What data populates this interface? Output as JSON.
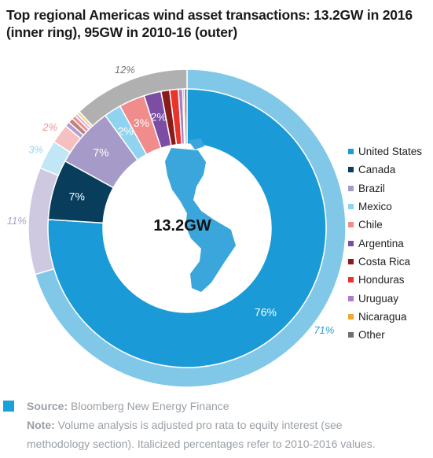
{
  "title_line1": "Top regional Americas wind asset transactions: 13.2GW in 2016",
  "title_line2": "(inner ring), 95GW in 2010-16 (outer)",
  "center_label": "13.2GW",
  "source_label": "Source:",
  "source_text": "Bloomberg New Energy Finance",
  "note_label": "Note:",
  "note_text_1": "Volume analysis is adjusted pro rata to equity interest (see",
  "note_text_2": "methodology section). Italicized percentages refer to 2010-2016 values.",
  "chart_data": {
    "type": "pie",
    "variant": "nested-donut",
    "legend_placement": "right",
    "categories": [
      "United States",
      "Canada",
      "Brazil",
      "Mexico",
      "Chile",
      "Argentina",
      "Costa Rica",
      "Honduras",
      "Uruguay",
      "Nicaragua",
      "Other"
    ],
    "colors": [
      "#1a9ad6",
      "#083d5c",
      "#a69bc8",
      "#8fd3f0",
      "#f08c8c",
      "#7b4ea3",
      "#8b1a1a",
      "#e8342a",
      "#b07cc6",
      "#f0a830",
      "#707070"
    ],
    "series": [
      {
        "name": "2016",
        "ring": "inner",
        "values": [
          76,
          7,
          7,
          2,
          3,
          2,
          1,
          1,
          0.5,
          0.2,
          0.3
        ],
        "labels": [
          "76%",
          "7%",
          "7%",
          "2%",
          "3%",
          "2%",
          "",
          "",
          "",
          "",
          ""
        ]
      },
      {
        "name": "2010-16",
        "ring": "outer",
        "values": [
          71,
          0,
          11,
          3,
          2,
          0.5,
          0.5,
          0.4,
          0.3,
          0.3,
          12
        ],
        "labels": [
          "71%",
          "",
          "11%",
          "3%",
          "2%",
          "",
          "",
          "",
          "",
          "",
          "12%"
        ]
      }
    ]
  }
}
